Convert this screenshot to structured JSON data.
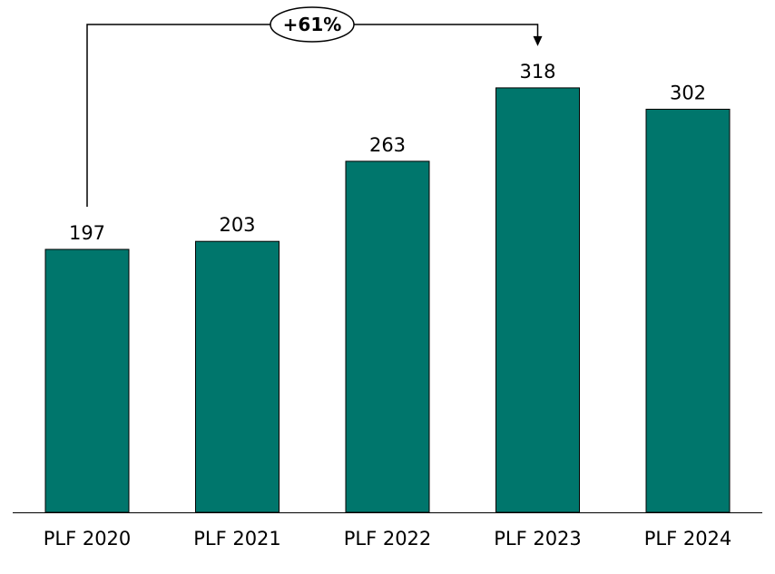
{
  "chart_data": {
    "type": "bar",
    "title": "",
    "xlabel": "",
    "ylabel": "",
    "categories": [
      "PLF 2020",
      "PLF 2021",
      "PLF 2022",
      "PLF 2023",
      "PLF 2024"
    ],
    "values": [
      197,
      203,
      263,
      318,
      302
    ],
    "data_labels": [
      "197",
      "203",
      "263",
      "318",
      "302"
    ],
    "ylim": [
      0,
      384
    ],
    "grid": false,
    "bar_color": "#00766C",
    "annotation": {
      "label": "+61%",
      "from_category": "PLF 2020",
      "to_category": "PLF 2023"
    }
  }
}
